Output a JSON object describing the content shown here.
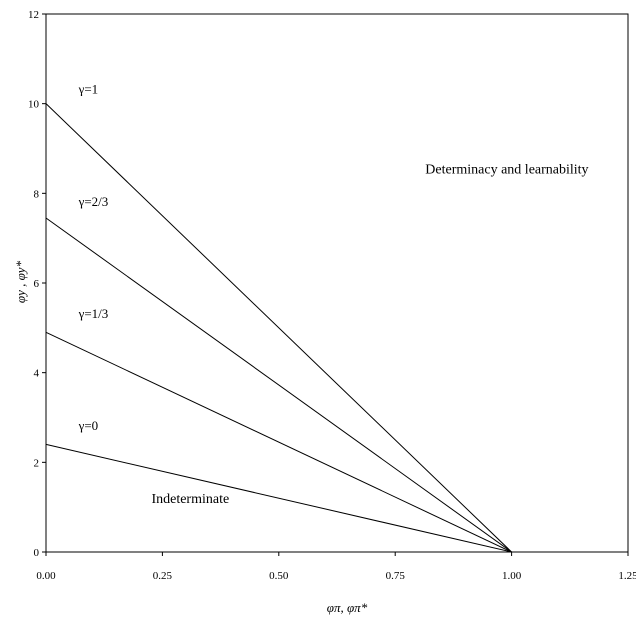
{
  "chart_data": {
    "type": "line",
    "title": "",
    "xlabel": "φπ, φπ*",
    "ylabel": "φy , φy*",
    "xlim": [
      0,
      1.25
    ],
    "ylim": [
      0,
      12
    ],
    "x_ticks": [
      "0.00",
      "0.25",
      "0.50",
      "0.75",
      "1.00",
      "1.25"
    ],
    "y_ticks": [
      "0",
      "2",
      "4",
      "6",
      "8",
      "10",
      "12"
    ],
    "grid": false,
    "series": [
      {
        "name": "γ=1",
        "x": [
          0,
          1
        ],
        "y": [
          10.0,
          0
        ]
      },
      {
        "name": "γ=2/3",
        "x": [
          0,
          1
        ],
        "y": [
          7.45,
          0
        ]
      },
      {
        "name": "γ=1/3",
        "x": [
          0,
          1
        ],
        "y": [
          4.9,
          0
        ]
      },
      {
        "name": "γ=0",
        "x": [
          0,
          1
        ],
        "y": [
          2.4,
          0
        ]
      }
    ],
    "annotations": [
      {
        "text": "Determinacy and learnability",
        "x": 0.99,
        "y": 8.55
      },
      {
        "text": "Indeterminate",
        "x": 0.31,
        "y": 1.2
      }
    ],
    "series_label_positions": [
      {
        "x": 0.07,
        "y": 10.0
      },
      {
        "x": 0.07,
        "y": 7.5
      },
      {
        "x": 0.07,
        "y": 5.0
      },
      {
        "x": 0.07,
        "y": 2.5
      }
    ]
  }
}
